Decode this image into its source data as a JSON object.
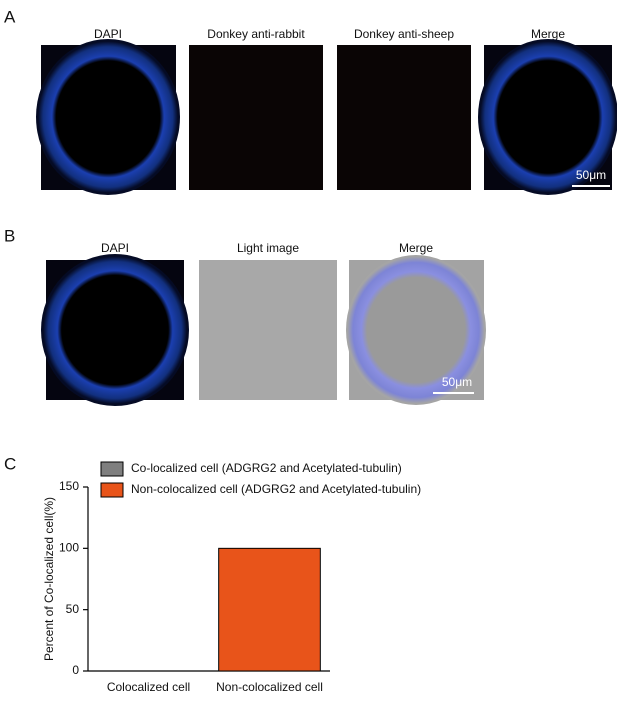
{
  "panels": {
    "A": {
      "label": "A",
      "titles": [
        "DAPI",
        "Donkey anti-rabbit",
        "Donkey anti-sheep",
        "Merge"
      ],
      "scale_bar": "50μm"
    },
    "B": {
      "label": "B",
      "titles": [
        "DAPI",
        "Light image",
        "Merge"
      ],
      "scale_bar": "50μm"
    },
    "C": {
      "label": "C"
    }
  },
  "chart_data": {
    "type": "bar",
    "ylabel": "Percent of Co-localized cell(%)",
    "categories": [
      "Colocalized cell",
      "Non-colocalized cell"
    ],
    "series": [
      {
        "name": "Co-localized cell (ADGRG2 and Acetylated-tubulin)",
        "color": "#7f7f7f",
        "values": [
          0,
          null
        ]
      },
      {
        "name": "Non-colocalized cell (ADGRG2 and Acetylated-tubulin)",
        "color": "#e8541a",
        "values": [
          null,
          100
        ]
      }
    ],
    "ylim": [
      0,
      150
    ],
    "yticks": [
      0,
      50,
      100,
      150
    ]
  }
}
